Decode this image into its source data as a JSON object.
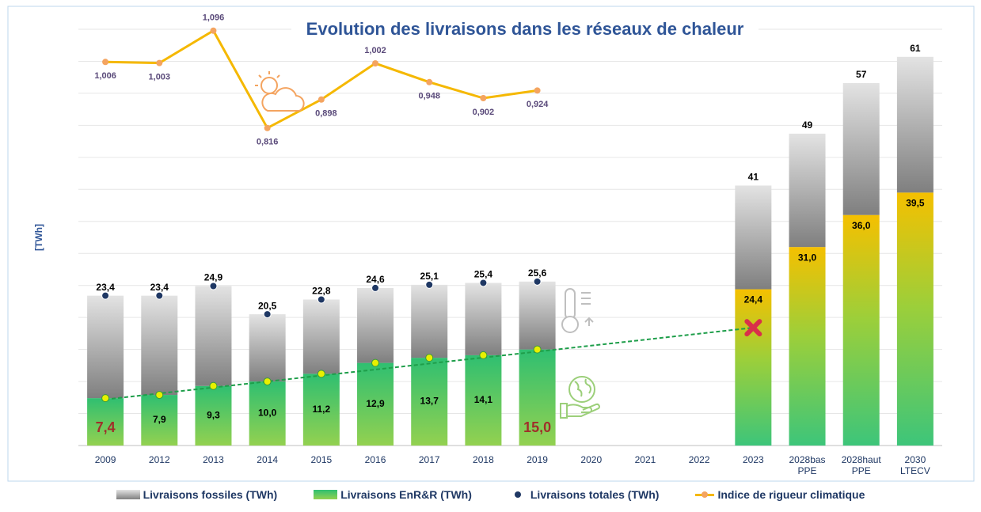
{
  "chart_data": {
    "type": "combo",
    "title": "Evolution des livraisons dans les réseaux de chaleur",
    "y_label": "[TWh]",
    "categories": [
      "2009",
      "2012",
      "2013",
      "2014",
      "2015",
      "2016",
      "2017",
      "2018",
      "2019",
      "2020",
      "2021",
      "2022",
      "2023",
      "2028bas PPE",
      "2028haut PPE",
      "2030 LTECV"
    ],
    "ylim": [
      0,
      65
    ],
    "yticks": [
      0,
      5,
      10,
      15,
      20,
      25,
      30,
      35,
      40,
      45,
      50,
      55,
      60,
      65
    ],
    "y2lim": [
      -0.097,
      1.1
    ],
    "grid": true,
    "series": [
      {
        "name": "Livraisons EnR&R (TWh)",
        "color": "#3cb878",
        "values": [
          7.4,
          7.9,
          9.3,
          10.0,
          11.2,
          12.9,
          13.7,
          14.1,
          15.0,
          null,
          null,
          null,
          24.4,
          31.0,
          36.0,
          39.5
        ],
        "value_labels": [
          "7,4",
          "7,9",
          "9,3",
          "10,0",
          "11,2",
          "12,9",
          "13,7",
          "14,1",
          "15,0",
          null,
          null,
          null,
          "24,4",
          "31,0",
          "36,0",
          "39,5"
        ]
      },
      {
        "name": "Livraisons fossiles (TWh)",
        "color": "#a6a6a6",
        "values": [
          16.0,
          15.5,
          15.6,
          10.5,
          11.6,
          11.7,
          11.4,
          11.3,
          10.6,
          null,
          null,
          null,
          16.2,
          17.7,
          20.6,
          21.2
        ]
      },
      {
        "name": "Livraisons totales (TWh)",
        "color": "#1f3864",
        "values": [
          23.4,
          23.4,
          24.9,
          20.5,
          22.8,
          24.6,
          25.1,
          25.4,
          25.6,
          null,
          null,
          null,
          null,
          null,
          null,
          null
        ],
        "value_labels": [
          "23,4",
          "23,4",
          "24,9",
          "20,5",
          "22,8",
          "24,6",
          "25,1",
          "25,4",
          "25,6",
          null,
          null,
          null,
          null,
          null,
          null,
          null
        ]
      },
      {
        "name": "Indice de rigueur climatique",
        "color": "#f5b800",
        "marker_color": "#f4a460",
        "axis": "y2",
        "values": [
          1.006,
          1.003,
          1.096,
          0.816,
          0.898,
          1.002,
          0.948,
          0.902,
          0.924,
          null,
          null,
          null,
          null,
          null,
          null,
          null
        ],
        "value_labels": [
          "1,006",
          "1,003",
          "1,096",
          "0,816",
          "0,898",
          "1,002",
          "0,948",
          "0,902",
          "0,924",
          null,
          null,
          null,
          null,
          null,
          null,
          null
        ]
      }
    ],
    "bar_totals": [
      null,
      null,
      null,
      null,
      null,
      null,
      null,
      null,
      null,
      null,
      null,
      null,
      41,
      49,
      57,
      61
    ],
    "trend_values": [
      7.2,
      null,
      null,
      null,
      null,
      null,
      null,
      null,
      null,
      null,
      null,
      null,
      18.4,
      null,
      null,
      null
    ]
  }
}
